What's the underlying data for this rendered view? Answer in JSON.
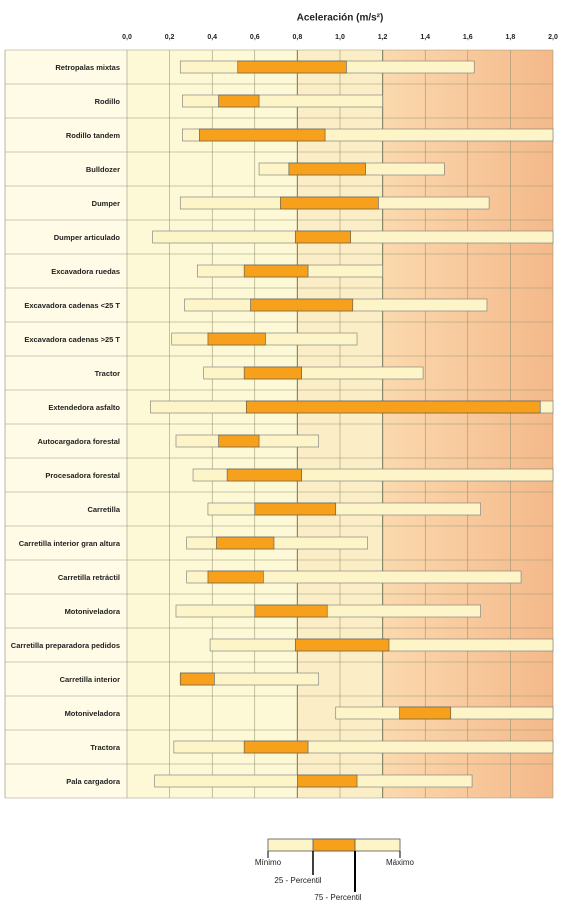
{
  "chart_data": {
    "type": "range_bar",
    "title": "Aceleración (m/s²)",
    "categories": [
      "Retropalas mixtas",
      "Rodillo",
      "Rodillo tandem",
      "Bulldozer",
      "Dumper",
      "Dumper articulado",
      "Excavadora ruedas",
      "Excavadora cadenas <25 T",
      "Excavadora cadenas >25 T",
      "Tractor",
      "Extendedora asfalto",
      "Autocargadora forestal",
      "Procesadora forestal",
      "Carretilla",
      "Carretilla interior gran altura",
      "Carretilla retráctil",
      "Motoniveladora",
      "Carretilla preparadora pedidos",
      "Carretilla interior",
      "Motoniveladora",
      "Tractora",
      "Pala cargadora"
    ],
    "series": [
      {
        "name": "Mínimo",
        "color": "#fdf5c8",
        "values": [
          0.25,
          0.26,
          0.26,
          0.62,
          0.25,
          0.12,
          0.33,
          0.27,
          0.21,
          0.36,
          0.11,
          0.23,
          0.31,
          0.38,
          0.28,
          0.28,
          0.23,
          0.39,
          0.25,
          0.98,
          0.22,
          0.13
        ]
      },
      {
        "name": "25 - Percentil",
        "color": "#f7a01c",
        "values": [
          0.52,
          0.43,
          0.34,
          0.76,
          0.72,
          0.79,
          0.55,
          0.58,
          0.38,
          0.55,
          0.56,
          0.43,
          0.47,
          0.6,
          0.42,
          0.38,
          0.6,
          0.79,
          0.25,
          1.28,
          0.55,
          0.8
        ]
      },
      {
        "name": "75 - Percentil",
        "color": "#f7a01c",
        "values": [
          1.03,
          0.62,
          0.93,
          1.12,
          1.18,
          1.05,
          0.85,
          1.06,
          0.65,
          0.82,
          1.94,
          0.62,
          0.82,
          0.98,
          0.69,
          0.64,
          0.94,
          1.23,
          0.41,
          1.52,
          0.85,
          1.08
        ]
      },
      {
        "name": "Máximo",
        "color": "#fdf5c8",
        "values": [
          1.63,
          1.2,
          2.0,
          1.49,
          1.7,
          2.0,
          1.2,
          1.69,
          1.08,
          1.39,
          2.0,
          0.9,
          2.0,
          1.66,
          1.13,
          1.85,
          1.66,
          2.0,
          0.9,
          2.0,
          2.0,
          1.62
        ]
      }
    ],
    "xlim": [
      0,
      2
    ],
    "xticks": [
      {
        "value": 0,
        "label": "0,0"
      },
      {
        "value": 0.2,
        "label": "0,2"
      },
      {
        "value": 0.4,
        "label": "0,4"
      },
      {
        "value": 0.6,
        "label": "0,6"
      },
      {
        "value": 0.8,
        "label": "0,8"
      },
      {
        "value": 1,
        "label": "1,0"
      },
      {
        "value": 1.2,
        "label": "1,2"
      },
      {
        "value": 1.4,
        "label": "1,4"
      },
      {
        "value": 1.6,
        "label": "1,6"
      },
      {
        "value": 1.8,
        "label": "1,8"
      },
      {
        "value": 2,
        "label": "2,0"
      }
    ],
    "grid": true
  }
}
